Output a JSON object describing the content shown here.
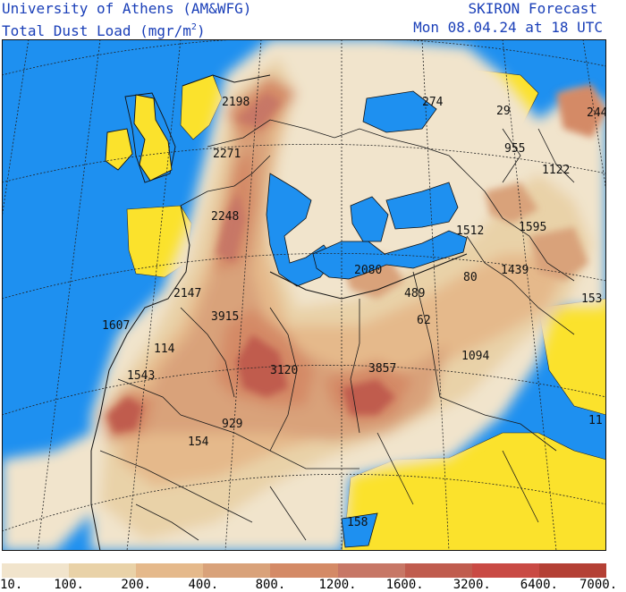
{
  "header": {
    "org": "University of Athens (AM&WFG)",
    "product_prefix": "Total Dust Load (mgr/m",
    "product_sup": "2",
    "product_suffix": ")",
    "model": "SKIRON Forecast",
    "valid_time": "Mon 08.04.24 at 18 UTC"
  },
  "colors": {
    "sea": "#1e90f0",
    "no_dust": "#fbe22c",
    "coast": "#111111"
  },
  "legend": {
    "ticks": [
      "10.",
      "100.",
      "200.",
      "400.",
      "800.",
      "1200.",
      "1600.",
      "3200.",
      "6400.",
      "7000."
    ],
    "colors": [
      "#f1e4cc",
      "#e9d2a8",
      "#e5b98b",
      "#d9a27a",
      "#d48a66",
      "#c77766",
      "#c05c4e",
      "#c94a44",
      "#b44035"
    ]
  },
  "labels": [
    {
      "text": "2198"
    },
    {
      "text": "274"
    },
    {
      "text": "29"
    },
    {
      "text": "244"
    },
    {
      "text": "2271"
    },
    {
      "text": "955"
    },
    {
      "text": "1122"
    },
    {
      "text": "2248"
    },
    {
      "text": "1512"
    },
    {
      "text": "1595"
    },
    {
      "text": "2080"
    },
    {
      "text": "1439"
    },
    {
      "text": "80"
    },
    {
      "text": "2147"
    },
    {
      "text": "489"
    },
    {
      "text": "153"
    },
    {
      "text": "3915"
    },
    {
      "text": "1607"
    },
    {
      "text": "62"
    },
    {
      "text": "114"
    },
    {
      "text": "1094"
    },
    {
      "text": "3120"
    },
    {
      "text": "3857"
    },
    {
      "text": "1543"
    },
    {
      "text": "929"
    },
    {
      "text": "11"
    },
    {
      "text": "154"
    },
    {
      "text": "158"
    }
  ]
}
